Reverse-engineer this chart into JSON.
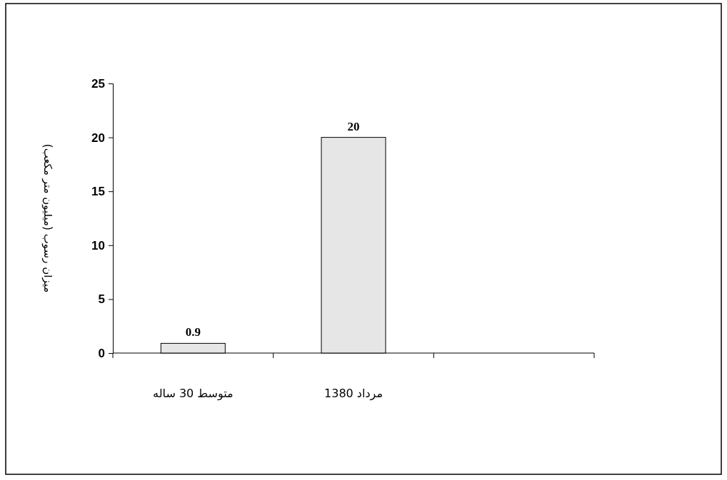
{
  "chart_data": {
    "type": "bar",
    "ylabel": "میزان رسوب (میلیون متر مکعب)",
    "categories": [
      "متوسط 30 ساله",
      "مرداد 1380",
      null
    ],
    "values": [
      0.9,
      20,
      null
    ],
    "color": "#e6e6e6",
    "ylim": [
      0,
      25
    ],
    "yticks": [
      0,
      5,
      10,
      15,
      20,
      25
    ],
    "data_labels": true,
    "grid": false
  }
}
